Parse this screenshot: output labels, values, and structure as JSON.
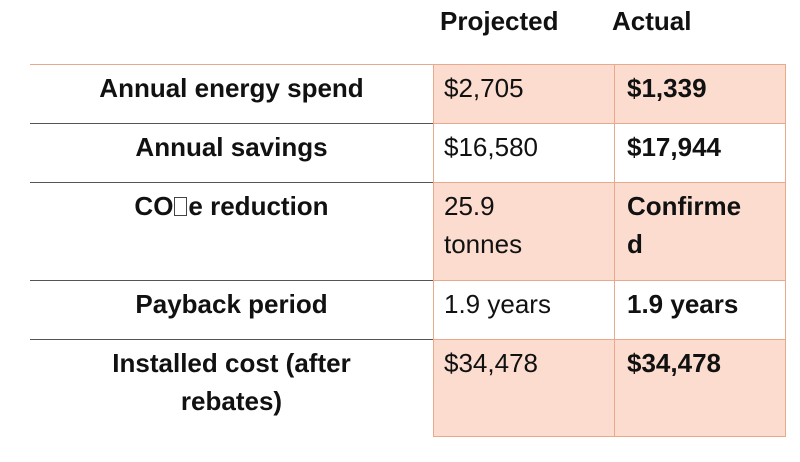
{
  "header": {
    "projected": "Projected",
    "actual": "Actual"
  },
  "rows": [
    {
      "label": "Annual energy spend",
      "projected": "$2,705",
      "actual": "$1,339"
    },
    {
      "label": "Annual savings",
      "projected": "$16,580",
      "actual": "$17,944"
    },
    {
      "label_prefix": "CO",
      "label_suffix": "e reduction",
      "projected_line1": "25.9",
      "projected_line2": "tonnes",
      "actual_line1": "Confirme",
      "actual_line2": "d"
    },
    {
      "label": "Payback period",
      "projected": "1.9 years",
      "actual": "1.9 years"
    },
    {
      "label_line1": "Installed cost (after",
      "label_line2": "rebates)",
      "projected": "$34,478",
      "actual": "$34,478"
    }
  ],
  "colors": {
    "cell_shade": "#fbdccf",
    "cell_border": "#e9a98c",
    "row_divider": "#555555"
  }
}
